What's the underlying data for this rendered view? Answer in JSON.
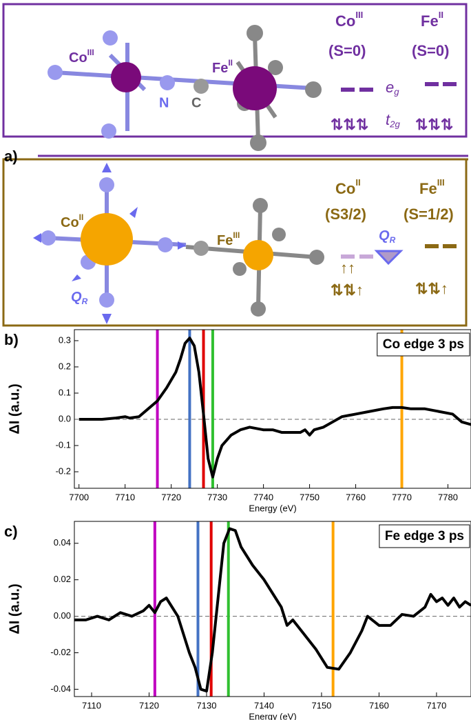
{
  "diagram": {
    "panel_a": "a)",
    "top": {
      "co_label": {
        "base": "Co",
        "sup": "III"
      },
      "n": "N",
      "c": "C",
      "fe_label": {
        "base": "Fe",
        "sup": "II"
      },
      "co_state": {
        "base": "Co",
        "sup": "III"
      },
      "co_spin": "(S=0)",
      "fe_state": {
        "base": "Fe",
        "sup": "II"
      },
      "fe_spin": "(S=0)",
      "eg": {
        "base": "e",
        "sub": "g"
      },
      "t2g": {
        "base": "t",
        "sub": "2g"
      }
    },
    "bottom": {
      "co_label": {
        "base": "Co",
        "sup": "II"
      },
      "fe_label": {
        "base": "Fe",
        "sup": "III"
      },
      "q_mol": {
        "base": "Q",
        "sub": "R"
      },
      "co_state": {
        "base": "Co",
        "sup": "II"
      },
      "co_spin": "(S3/2)",
      "fe_state": {
        "base": "Fe",
        "sup": "III"
      },
      "fe_spin": "(S=1/2)",
      "q_diag": {
        "base": "Q",
        "sub": "R"
      }
    }
  },
  "chart_data": [
    {
      "type": "line",
      "panel": "b)",
      "annotation": "Co edge 3 ps",
      "x_label": "Energy (eV)",
      "y_label": "ΔI (a.u.)",
      "xlim": [
        7699,
        7785
      ],
      "ylim": [
        -0.263,
        0.342
      ],
      "xticks": [
        7700,
        7710,
        7720,
        7730,
        7740,
        7750,
        7760,
        7770,
        7780
      ],
      "yticks": [
        -0.2,
        -0.1,
        {
          "value": 0,
          "label": "0.0"
        },
        0.1,
        0.2,
        0.3
      ],
      "reference_line": 0,
      "vlines": [
        {
          "x": 7717,
          "color": "#c000c0"
        },
        {
          "x": 7724,
          "color": "#4472c4"
        },
        {
          "x": 7727,
          "color": "#e00000"
        },
        {
          "x": 7729,
          "color": "#30c030"
        },
        {
          "x": 7770,
          "color": "#ffa500"
        }
      ],
      "x": [
        7700,
        7705,
        7708,
        7710,
        7711,
        7713,
        7715,
        7717,
        7719,
        7721,
        7722,
        7723,
        7724,
        7725,
        7726,
        7727,
        7728,
        7729,
        7730,
        7731,
        7733,
        7735,
        7737,
        7740,
        7742,
        7744,
        7746,
        7748,
        7749,
        7750,
        7751,
        7753,
        7755,
        7757,
        7760,
        7763,
        7766,
        7768,
        7770,
        7772,
        7775,
        7778,
        7781,
        7783,
        7785
      ],
      "series": [
        {
          "color": "#000000",
          "values": [
            0,
            0,
            0.005,
            0.01,
            0.005,
            0.01,
            0.04,
            0.07,
            0.12,
            0.18,
            0.23,
            0.29,
            0.31,
            0.28,
            0.18,
            0.02,
            -0.15,
            -0.22,
            -0.15,
            -0.1,
            -0.06,
            -0.04,
            -0.03,
            -0.04,
            -0.04,
            -0.05,
            -0.05,
            -0.05,
            -0.04,
            -0.06,
            -0.04,
            -0.03,
            -0.01,
            0.01,
            0.02,
            0.03,
            0.04,
            0.045,
            0.045,
            0.04,
            0.04,
            0.03,
            0.02,
            -0.01,
            -0.02
          ]
        }
      ]
    },
    {
      "type": "line",
      "panel": "c)",
      "annotation": "Fe edge 3 ps",
      "x_label": "Energy (eV)",
      "y_label": "ΔI (a.u.)",
      "xlim": [
        7107,
        7176
      ],
      "ylim": [
        -0.044,
        0.052
      ],
      "xticks": [
        7110,
        7120,
        7130,
        7140,
        7150,
        7160,
        7170
      ],
      "yticks": [
        -0.04,
        -0.02,
        {
          "value": 0,
          "label": "0.00"
        },
        0.02,
        0.04
      ],
      "reference_line": 0,
      "vlines": [
        {
          "x": 7121,
          "color": "#c000c0"
        },
        {
          "x": 7128.5,
          "color": "#4472c4"
        },
        {
          "x": 7130.8,
          "color": "#e00000"
        },
        {
          "x": 7133.8,
          "color": "#30c030"
        },
        {
          "x": 7152,
          "color": "#ffa500"
        }
      ],
      "x": [
        7107,
        7109,
        7111,
        7113,
        7115,
        7117,
        7119,
        7120,
        7121,
        7122,
        7123,
        7125,
        7126,
        7127,
        7128,
        7129,
        7130,
        7131,
        7132,
        7133,
        7134,
        7135,
        7136,
        7138,
        7140,
        7142,
        7143,
        7144,
        7145,
        7147,
        7149,
        7151,
        7153,
        7155,
        7157,
        7158,
        7160,
        7162,
        7164,
        7166,
        7168,
        7169,
        7170,
        7171,
        7172,
        7173,
        7174,
        7175,
        7176
      ],
      "series": [
        {
          "color": "#000000",
          "values": [
            -0.002,
            -0.002,
            0,
            -0.002,
            0.002,
            0,
            0.003,
            0.006,
            0.002,
            0.008,
            0.01,
            0,
            -0.01,
            -0.02,
            -0.028,
            -0.04,
            -0.041,
            -0.02,
            0.01,
            0.04,
            0.048,
            0.047,
            0.038,
            0.028,
            0.02,
            0.01,
            0.005,
            -0.005,
            -0.002,
            -0.01,
            -0.018,
            -0.028,
            -0.029,
            -0.02,
            -0.008,
            0,
            -0.005,
            -0.005,
            0.001,
            0,
            0.005,
            0.012,
            0.008,
            0.01,
            0.006,
            0.01,
            0.005,
            0.008,
            0.006
          ]
        }
      ]
    }
  ]
}
